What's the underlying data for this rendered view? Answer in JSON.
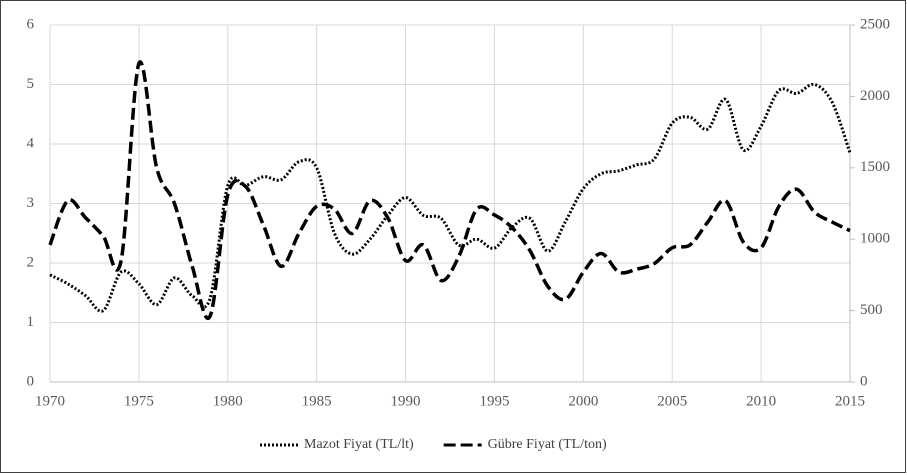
{
  "chart_data": {
    "type": "line",
    "x": [
      1970,
      1971,
      1972,
      1973,
      1974,
      1975,
      1976,
      1977,
      1978,
      1979,
      1980,
      1981,
      1982,
      1983,
      1984,
      1985,
      1986,
      1987,
      1988,
      1989,
      1990,
      1991,
      1992,
      1993,
      1994,
      1995,
      1996,
      1997,
      1998,
      1999,
      2000,
      2001,
      2002,
      2003,
      2004,
      2005,
      2006,
      2007,
      2008,
      2009,
      2010,
      2011,
      2012,
      2013,
      2014,
      2015
    ],
    "series": [
      {
        "name": "Mazot Fiyat (TL/lt)",
        "color": "#000000",
        "style": "dotted",
        "axis": "y",
        "values": [
          1.8,
          1.65,
          1.45,
          1.2,
          1.85,
          1.65,
          1.3,
          1.75,
          1.45,
          1.4,
          3.3,
          3.3,
          3.45,
          3.4,
          3.7,
          3.6,
          2.5,
          2.15,
          2.4,
          2.8,
          3.1,
          2.8,
          2.75,
          2.3,
          2.4,
          2.25,
          2.6,
          2.75,
          2.2,
          2.7,
          3.25,
          3.5,
          3.55,
          3.65,
          3.75,
          4.35,
          4.45,
          4.25,
          4.75,
          3.9,
          4.3,
          4.9,
          4.85,
          5.0,
          4.7,
          3.85
        ]
      },
      {
        "name": "Gübre Fiyat (TL/ton)",
        "color": "#000000",
        "style": "dashed",
        "axis": "y2",
        "values": [
          960,
          1270,
          1150,
          1020,
          850,
          2230,
          1500,
          1250,
          810,
          460,
          1310,
          1370,
          1100,
          810,
          1040,
          1230,
          1210,
          1040,
          1270,
          1150,
          850,
          960,
          710,
          880,
          1210,
          1170,
          1080,
          920,
          670,
          580,
          770,
          900,
          770,
          790,
          830,
          940,
          960,
          1120,
          1270,
          980,
          940,
          1230,
          1350,
          1190,
          1120,
          1060
        ]
      }
    ],
    "xlim": [
      1970,
      2015
    ],
    "xticks": [
      1970,
      1975,
      1980,
      1985,
      1990,
      1995,
      2000,
      2005,
      2010,
      2015
    ],
    "ylim": [
      0,
      6
    ],
    "yticks": [
      0,
      1,
      2,
      3,
      4,
      5,
      6
    ],
    "y2lim": [
      0,
      2500
    ],
    "y2ticks": [
      0,
      500,
      1000,
      1500,
      2000,
      2500
    ],
    "grid": true,
    "legend": "bottom"
  }
}
